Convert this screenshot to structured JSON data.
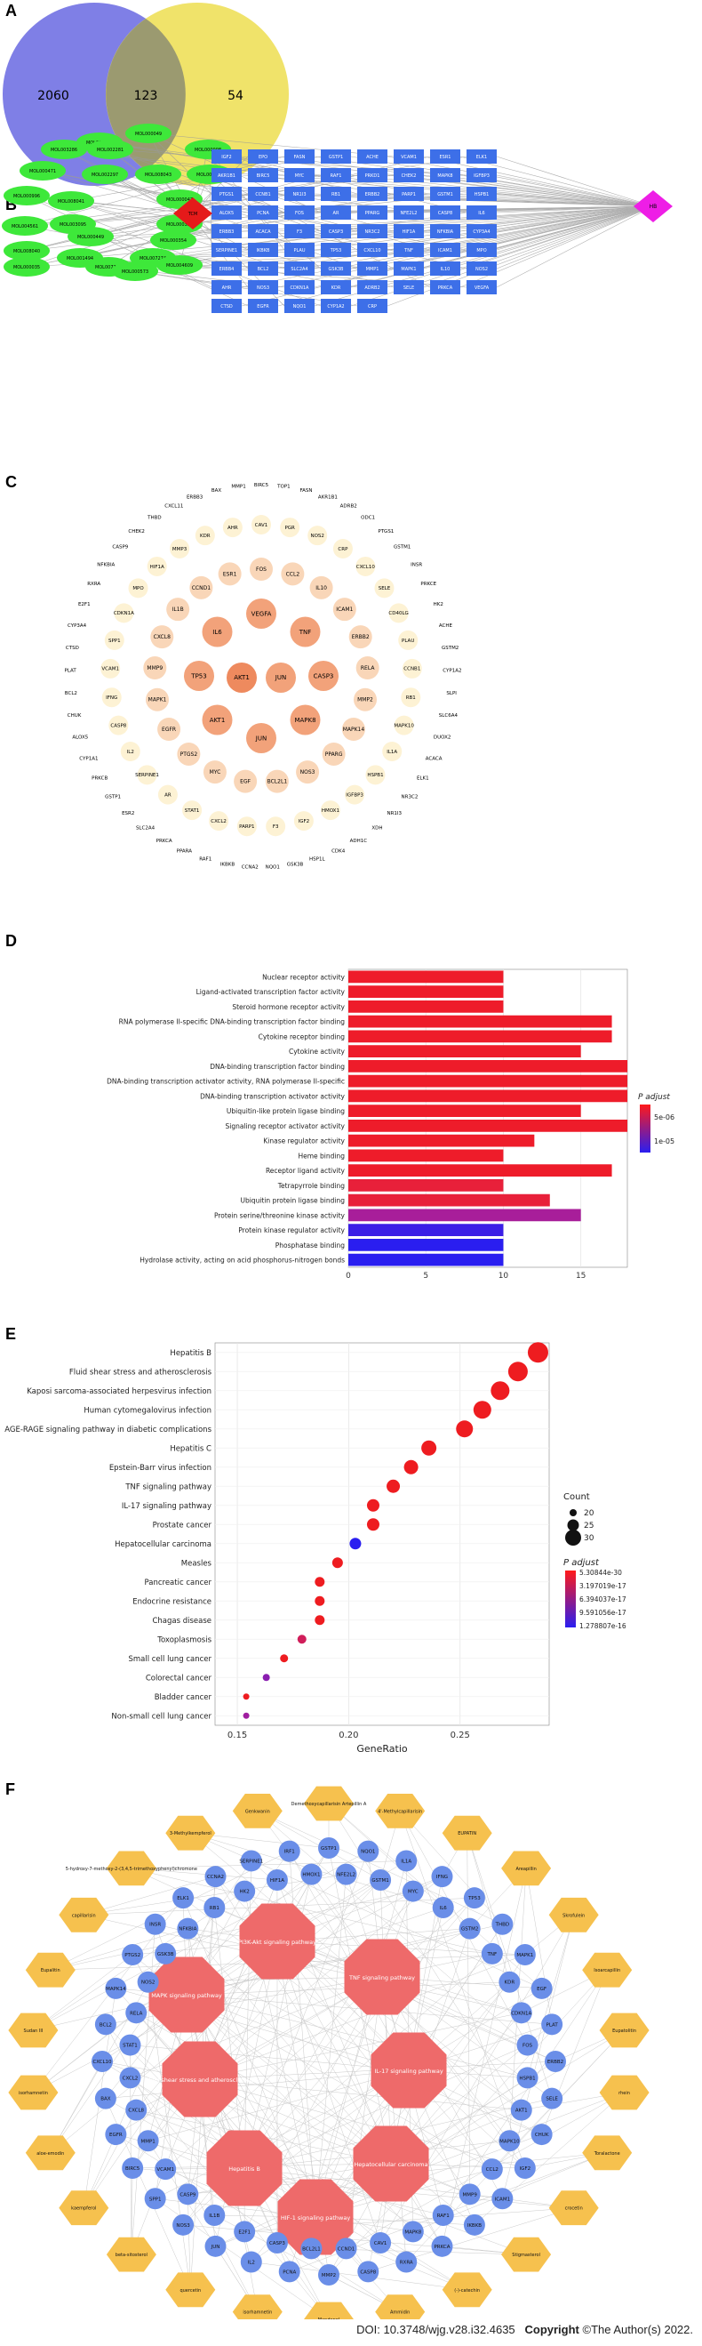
{
  "panels": {
    "A": "A",
    "B": "B",
    "C": "C",
    "D": "D",
    "E": "E",
    "F": "F"
  },
  "colors": {
    "venn_left": "#7f7fe6",
    "venn_right": "#f0e36a",
    "venn_overlap": "#9b9a70",
    "node_green": "#3ee83a",
    "node_blue": "#3d6fe8",
    "node_red": "#e51a1a",
    "node_magenta": "#ee1ee6",
    "hex_orange": "#f6c14e",
    "oct_red": "#ee6a6a",
    "circ_blue": "#6a8ee8"
  },
  "venn": {
    "left_only": "2060",
    "overlap": "123",
    "right_only": "54"
  },
  "networkB": {
    "compounds": [
      "MOL002235",
      "MOL000049",
      "MOL003286",
      "MOL002281",
      "MOL000098",
      "MOL000471",
      "MOL002297",
      "MOL008043",
      "MOL000422",
      "MOL000996",
      "MOL008041",
      "MOL000047",
      "MOL004561",
      "MOL003095",
      "MOL000358",
      "MOL008040",
      "MOL000449",
      "MOL000354",
      "MOL000035",
      "MOL001494",
      "MOL007274",
      "MOL007243",
      "MOL004609",
      "MOL000573"
    ],
    "hub": "TCM",
    "disease": "HB",
    "targets": [
      "IGF2",
      "EPO",
      "FASN",
      "GSTP1",
      "ACHE",
      "VCAM1",
      "ESR1",
      "ELK1",
      "AKR1B1",
      "BIRC5",
      "MYC",
      "RAF1",
      "PRKD1",
      "CHEK2",
      "MAPK8",
      "IGFBP3",
      "PTGS1",
      "CCNB1",
      "NR1I3",
      "RB1",
      "ERBB2",
      "PARP1",
      "GSTM1",
      "HSPB1",
      "ALOX5",
      "PCNA",
      "FOS",
      "AR",
      "PPARG",
      "NFE2L2",
      "CASP8",
      "IL6",
      "ERBB3",
      "ACACA",
      "F3",
      "CASP3",
      "NR3C2",
      "HIF1A",
      "NFKBIA",
      "CYP3A4",
      "SERPINE1",
      "IKBKB",
      "PLAU",
      "TP53",
      "CXCL10",
      "TNF",
      "ICAM1",
      "MPO",
      "ERBB4",
      "BCL2",
      "SLC2A4",
      "GSK3B",
      "MMP1",
      "MAPK1",
      "IL10",
      "NOS2",
      "AHR",
      "NOS3",
      "CDKN1A",
      "KDR",
      "ADRB2",
      "SELE",
      "PRKCA",
      "VEGFA",
      "CTSD",
      "EGFR",
      "NQO1",
      "CYP1A2",
      "CRP"
    ]
  },
  "networkC": {
    "core": [
      "AKT1",
      "JUN"
    ],
    "ring1": [
      "VEGFA",
      "TNF",
      "CASP3",
      "MAPK8",
      "JUN",
      "AKT1",
      "TP53",
      "IL6"
    ],
    "ring2": [
      "FOS",
      "CCL2",
      "IL10",
      "ICAM1",
      "ERBB2",
      "RELA",
      "MMP2",
      "MAPK14",
      "PPARG",
      "NOS3",
      "BCL2L1",
      "EGF",
      "MYC",
      "PTGS2",
      "EGFR",
      "MAPK1",
      "MMP9",
      "CXCL8",
      "IL1B",
      "CCND1",
      "ESR1"
    ],
    "ring3": [
      "CAV1",
      "PGR",
      "NOS2",
      "CRP",
      "CXCL10",
      "SELE",
      "CD40LG",
      "PLAU",
      "CCNB1",
      "RB1",
      "MAPK10",
      "IL1A",
      "HSPB1",
      "IGFBP3",
      "HMOX1",
      "IGF2",
      "F3",
      "PARP1",
      "CXCL2",
      "STAT1",
      "AR",
      "SERPINE1",
      "IL2",
      "CASP8",
      "IFNG",
      "VCAM1",
      "SPP1",
      "CDKN1A",
      "MPO",
      "HIF1A",
      "MMP3",
      "KDR",
      "AHR"
    ],
    "ring4": [
      "BIRC5",
      "TOP1",
      "FASN",
      "AKR1B1",
      "ADRB2",
      "ODC1",
      "PTGS1",
      "GSTM1",
      "INSR",
      "PRKCE",
      "HK2",
      "ACHE",
      "GSTM2",
      "CYP1A2",
      "SLPI",
      "SLC6A4",
      "DUOX2",
      "ACACA",
      "ELK1",
      "NR3C2",
      "NR1I3",
      "XDH",
      "ADH1C",
      "CDK4",
      "HSP1L",
      "GSK3B",
      "NQO1",
      "CCNA2",
      "IKBKB",
      "RAF1",
      "PPARA",
      "PRKCA",
      "SLC2A4",
      "ESR2",
      "GSTP1",
      "PRKCB",
      "CYP1A1",
      "ALOX5",
      "CHUK",
      "BCL2",
      "PLAT",
      "CTSD",
      "CYP3A4",
      "E2F1",
      "RXRA",
      "NFKBIA",
      "CASP9",
      "CHEK2",
      "THBD",
      "CXCL11",
      "ERBB3",
      "BAX",
      "MMP1"
    ]
  },
  "chart_data": [
    {
      "type": "bar",
      "title": "",
      "xlabel": "",
      "ylabel": "",
      "xlim": [
        0,
        18
      ],
      "xticks": [
        "0",
        "5",
        "10",
        "15"
      ],
      "categories": [
        "Nuclear receptor activity",
        "Ligand-activated transcription factor activity",
        "Steroid hormone receptor activity",
        "RNA polymerase II-specific DNA-binding transcription factor binding",
        "Cytokine receptor binding",
        "Cytokine activity",
        "DNA-binding transcription factor binding",
        "DNA-binding transcription activator activity, RNA polymerase II-specific",
        "DNA-binding transcription activator activity",
        "Ubiquitin-like protein ligase binding",
        "Signaling receptor activator activity",
        "Kinase regulator activity",
        "Heme binding",
        "Receptor ligand activity",
        "Tetrapyrrole binding",
        "Ubiquitin protein ligase binding",
        "Protein serine/threonine kinase activity",
        "Protein kinase regulator activity",
        "Phosphatase binding",
        "Hydrolase activity, acting on acid phosphorus-nitrogen bonds"
      ],
      "values": [
        10,
        10,
        10,
        17,
        17,
        15,
        18,
        18,
        18,
        15,
        18,
        12,
        10,
        17,
        10,
        13,
        15,
        10,
        10,
        10
      ],
      "colors": [
        "#ee1c2a",
        "#ee1c2a",
        "#ee1c2a",
        "#ee1c2a",
        "#ee1c2a",
        "#ee1c2a",
        "#ee1c2a",
        "#ee1c2a",
        "#ee1c2a",
        "#ee1c2a",
        "#ee1c2a",
        "#ee1c2a",
        "#ee1c2a",
        "#ee1c2a",
        "#e8203a",
        "#e8203a",
        "#a81e9a",
        "#3a1ee6",
        "#2a1ef0",
        "#2a1ef0"
      ],
      "legend_title": "P adjust",
      "legend_ticks": [
        "5e-06",
        "1e-05"
      ],
      "legend_placement": "right",
      "grid": true
    },
    {
      "type": "scatter",
      "title": "",
      "xlabel": "GeneRatio",
      "ylabel": "",
      "xlim": [
        0.14,
        0.29
      ],
      "xticks": [
        "0.15",
        "0.20",
        "0.25"
      ],
      "categories": [
        "Hepatitis B",
        "Fluid shear stress and atherosclerosis",
        "Kaposi sarcoma-associated herpesvirus infection",
        "Human cytomegalovirus infection",
        "AGE-RAGE signaling pathway in diabetic complications",
        "Hepatitis C",
        "Epstein-Barr virus infection",
        "TNF signaling pathway",
        "IL-17 signaling pathway",
        "Prostate cancer",
        "Hepatocellular carcinoma",
        "Measles",
        "Pancreatic cancer",
        "Endocrine resistance",
        "Chagas disease",
        "Toxoplasmosis",
        "Small cell lung cancer",
        "Colorectal cancer",
        "Bladder cancer",
        "Non-small cell lung cancer"
      ],
      "x": [
        0.285,
        0.276,
        0.268,
        0.26,
        0.252,
        0.236,
        0.228,
        0.22,
        0.211,
        0.211,
        0.203,
        0.195,
        0.187,
        0.187,
        0.187,
        0.179,
        0.171,
        0.163,
        0.154,
        0.154
      ],
      "counts": [
        35,
        34,
        33,
        32,
        31,
        29,
        28,
        27,
        26,
        26,
        25,
        24,
        23,
        23,
        23,
        22,
        21,
        20,
        19,
        19
      ],
      "colors": [
        "#ee1c20",
        "#ee1c20",
        "#ee1c20",
        "#ee1c20",
        "#ee1c20",
        "#ee1c20",
        "#ee1c20",
        "#ee1c20",
        "#ee1c20",
        "#ee1c20",
        "#2a1ef0",
        "#ee1c20",
        "#ee1c20",
        "#ee1c20",
        "#ee1c20",
        "#d01e5a",
        "#ee1c20",
        "#8a1eb0",
        "#ee1c20",
        "#a01ea0"
      ],
      "size_legend_title": "Count",
      "size_legend": [
        "20",
        "25",
        "30"
      ],
      "color_legend_title": "P adjust",
      "color_legend_ticks": [
        "5.30844e-30",
        "3.197019e-17",
        "6.394037e-17",
        "9.591056e-17",
        "1.278807e-16"
      ],
      "legend_placement": "right",
      "grid": true
    }
  ],
  "networkF": {
    "pathways": [
      "PI3K-Akt signaling pathway",
      "MAPK signaling pathway",
      "TNF signaling pathway",
      "Fluid shear stress and atherosclerosis",
      "IL-17 signaling pathway",
      "Hepatitis B",
      "Hepatocellular carcinoma",
      "HIF-1 signaling pathway"
    ],
    "compounds": [
      "Demethoxycapillarisin Artepillin A",
      "4'-Methylcapillarisin",
      "EUPATIN",
      "Areapillin",
      "Skrofulein",
      "Isoarcapillin",
      "Eupatolitin",
      "rhein",
      "Toralactone",
      "crocetin",
      "Stigmasterol",
      "(-)-catechin",
      "Ammidin",
      "Mandenol",
      "isorhamnetin",
      "quercetin",
      "beta-sitosterol",
      "kaempferol",
      "aloe-emodin",
      "isorhamnetin",
      "Sudan III",
      "Eupalitin",
      "capillarisin",
      "5-hydroxy-7-methoxy-2-(3,4,5-trimethoxyphenyl)chromone",
      "3-Methylkempferol",
      "Genkwanin"
    ],
    "genes": [
      "GSTP1",
      "NFE2L2",
      "NQO1",
      "GSTM1",
      "IL1A",
      "MYC",
      "IFNG",
      "IL6",
      "TP53",
      "GSTM2",
      "THBD",
      "TNF",
      "MAPK1",
      "KDR",
      "EGF",
      "CDKN1A",
      "PLAT",
      "FOS",
      "ERBB2",
      "HSPB1",
      "SELE",
      "AKT1",
      "CHUK",
      "MAPK10",
      "IGF2",
      "CCL2",
      "ICAM1",
      "MMP9",
      "IKBKB",
      "RAF1",
      "PRKCA",
      "MAPK8",
      "RXRA",
      "CAV1",
      "CASP8",
      "CCND1",
      "MMP2",
      "BCL2L1",
      "PCNA",
      "CASP3",
      "IL2",
      "E2F1",
      "JUN",
      "IL1B",
      "NOS3",
      "CASP9",
      "SPP1",
      "VCAM1",
      "BIRC5",
      "MMP1",
      "EGFR",
      "CXCL8",
      "BAX",
      "CXCL2",
      "CXCL10",
      "STAT1",
      "BCL2",
      "RELA",
      "MAPK14",
      "NOS2",
      "PTGS2",
      "GSK3B",
      "INSR",
      "NFKBIA",
      "ELK1",
      "RB1",
      "CCNA2",
      "HK2",
      "SERPINE1",
      "HIF1A",
      "IRF1",
      "HMOX1"
    ]
  },
  "footer": {
    "doi": "DOI: 10.3748/wjg.v28.i32.4635",
    "copyright_label": "Copyright",
    "copyright_text": "©The Author(s) 2022."
  }
}
